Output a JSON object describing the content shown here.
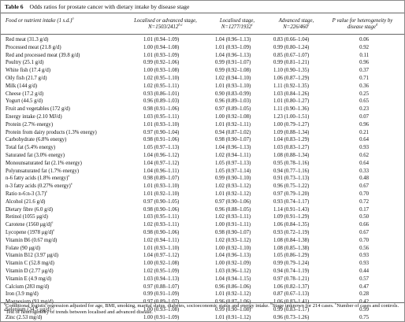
{
  "table": {
    "label": "Table 6",
    "title": "Odds ratios for prostate cancer with dietary intake by disease stage",
    "headers": {
      "food_line1": "Food or nutrient intake (1 s.d.)",
      "food_sup": "a",
      "la_line1": "Localised or advanced stage,",
      "la_line2": "N=1503/2412",
      "la_sup": "b,c",
      "lo_line1": "Localised stage,",
      "lo_line2": "N=1277/1932",
      "lo_sup": "c",
      "ad_line1": "Advanced stage,",
      "ad_line2": "N=226/460",
      "ad_sup": "c",
      "p_line1": "P value for heterogeneity by",
      "p_line2": "disease stage",
      "p_sup": "d"
    },
    "rows": [
      {
        "label": "Red meat (31.3 g/d)",
        "sup": "",
        "la": "1.01 (0.94–1.09)",
        "lo": "1.04 (0.96–1.13)",
        "ad": "0.83 (0.66–1.04)",
        "p": "0.06"
      },
      {
        "label": "Processed meat (21.8 g/d)",
        "sup": "",
        "la": "1.00 (0.94–1.08)",
        "lo": "1.01 (0.93–1.09)",
        "ad": "0.99 (0.80–1.24)",
        "p": "0.92"
      },
      {
        "label": "Red and processed meat (39.8 g/d)",
        "sup": "",
        "la": "1.01 (0.93–1.09)",
        "lo": "1.04 (0.96–1.13)",
        "ad": "0.85 (0.67–1.07)",
        "p": "0.11"
      },
      {
        "label": "Poultry (25.1 g/d)",
        "sup": "",
        "la": "0.99 (0.92–1.06)",
        "lo": "0.99 (0.91–1.07)",
        "ad": "0.99 (0.81–1.21)",
        "p": "0.96"
      },
      {
        "label": "White fish (17.4 g/d)",
        "sup": "",
        "la": "1.00 (0.93–1.08)",
        "lo": "0.99 (0.92–1.08)",
        "ad": "1.10 (0.90–1.35)",
        "p": "0.37"
      },
      {
        "label": "Oily fish (21.7 g/d)",
        "sup": "",
        "la": "1.02 (0.95–1.10)",
        "lo": "1.02 (0.94–1.10)",
        "ad": "1.06 (0.87–1.29)",
        "p": "0.71"
      },
      {
        "label": "Milk (144 g/d)",
        "sup": "",
        "la": "1.02 (0.95–1.11)",
        "lo": "1.01 (0.93–1.10)",
        "ad": "1.11 (0.92–1.35)",
        "p": "0.36"
      },
      {
        "label": "Cheese (17.2 g/d)",
        "sup": "",
        "la": "0.93 (0.86–1.01)",
        "lo": "0.90 (0.83–0.99)",
        "ad": "1.03 (0.84–1.26)",
        "p": "0.25"
      },
      {
        "label": "Yogurt (44.5 g/d)",
        "sup": "",
        "la": "0.96 (0.89–1.03)",
        "lo": "0.96 (0.89–1.03)",
        "ad": "1.01 (0.80–1.27)",
        "p": "0.65"
      },
      {
        "label": "Fruit and vegetables (172 g/d)",
        "sup": "",
        "la": "0.98 (0.91–1.06)",
        "lo": "0.97 (0.89–1.05)",
        "ad": "1.11 (0.90–1.36)",
        "p": "0.23"
      },
      {
        "label": "Energy intake (2.10 MJ/d)",
        "sup": "",
        "la": "1.03 (0.95–1.11)",
        "lo": "1.00 (0.92–1.08)",
        "ad": "1.23 (1.00–1.51)",
        "p": "0.07"
      },
      {
        "label": "Protein (2.7% energy)",
        "sup": "",
        "la": "1.01 (0.93–1.10)",
        "lo": "1.01 (0.92–1.11)",
        "ad": "1.00 (0.79–1.27)",
        "p": "0.96"
      },
      {
        "label": "Protein from dairy products (1.3% energy)",
        "sup": "",
        "la": "0.97 (0.90–1.04)",
        "lo": "0.94 (0.87–1.02)",
        "ad": "1.09 (0.88–1.34)",
        "p": "0.21"
      },
      {
        "label": "Carbohydrate (6.8% energy)",
        "sup": "",
        "la": "0.98 (0.91–1.06)",
        "lo": "0.98 (0.90–1.07)",
        "ad": "1.04 (0.83–1.29)",
        "p": "0.64"
      },
      {
        "label": "Total fat (5.4% energy)",
        "sup": "",
        "la": "1.05 (0.97–1.13)",
        "lo": "1.04 (0.96–1.13)",
        "ad": "1.03 (0.83–1.27)",
        "p": "0.93"
      },
      {
        "label": "Saturated fat (3.0% energy)",
        "sup": "",
        "la": "1.04 (0.96–1.12)",
        "lo": "1.02 (0.94–1.11)",
        "ad": "1.08 (0.88–1.34)",
        "p": "0.62"
      },
      {
        "label": "Monounsaturated fat (2.1% energy)",
        "sup": "",
        "la": "1.04 (0.97–1.12)",
        "lo": "1.05 (0.97–1.13)",
        "ad": "0.95 (0.78–1.16)",
        "p": "0.64"
      },
      {
        "label": "Polyunsaturated fat (1.7% energy)",
        "sup": "",
        "la": "1.04 (0.96–1.11)",
        "lo": "1.05 (0.97–1.14)",
        "ad": "0.94 (0.77–1.16)",
        "p": "0.33"
      },
      {
        "label": "n-6 fatty acids (1.8% energy)",
        "sup": "e",
        "la": "0.98 (0.89–1.07)",
        "lo": "0.99 (0.90–1.10)",
        "ad": "0.91 (0.73–1.13)",
        "p": "0.48"
      },
      {
        "label": "n-3 fatty acids (0.27% energy)",
        "sup": "e",
        "la": "1.01 (0.93–1.10)",
        "lo": "1.02 (0.93–1.12)",
        "ad": "0.96 (0.75–1.22)",
        "p": "0.67"
      },
      {
        "label": "Ratio n-6:n-3 (3.7)",
        "sup": "e",
        "la": "1.01 (0.92–1.10)",
        "lo": "1.01 (0.92–1.12)",
        "ad": "0.97 (0.79–1.20)",
        "p": "0.70"
      },
      {
        "label": "Alcohol (21.6 g/d)",
        "sup": "",
        "la": "0.97 (0.90–1.05)",
        "lo": "0.97 (0.90–1.06)",
        "ad": "0.93 (0.74–1.17)",
        "p": "0.72"
      },
      {
        "label": "Dietary fibre (6.0 g/d)",
        "sup": "",
        "la": "0.98 (0.90–1.06)",
        "lo": "0.96 (0.88–1.05)",
        "ad": "1.14 (0.91–1.43)",
        "p": "0.17"
      },
      {
        "label": "Retinol (1055 μg/d)",
        "sup": "",
        "la": "1.03 (0.95–1.11)",
        "lo": "1.02 (0.93–1.11)",
        "ad": "1.09 (0.91–1.29)",
        "p": "0.50"
      },
      {
        "label": "Carotene (1560 μg/d)",
        "sup": "e",
        "la": "1.02 (0.93–1.11)",
        "lo": "1.00 (0.91–1.11)",
        "ad": "1.06 (0.84–1.35)",
        "p": "0.66"
      },
      {
        "label": "Lycopene (1978 μg/d)",
        "sup": "e",
        "la": "0.98 (0.90–1.06)",
        "lo": "0.98 (0.90–1.07)",
        "ad": "0.93 (0.72–1.19)",
        "p": "0.67"
      },
      {
        "label": "Vitamin B6 (0.67 mg/d)",
        "sup": "",
        "la": "1.02 (0.94–1.11)",
        "lo": "1.02 (0.93–1.12)",
        "ad": "1.08 (0.84–1.38)",
        "p": "0.70"
      },
      {
        "label": "Folate (90 μg/d)",
        "sup": "",
        "la": "1.01 (0.93–1.10)",
        "lo": "1.00 (0.92–1.10)",
        "ad": "1.08 (0.85–1.38)",
        "p": "0.56"
      },
      {
        "label": "Vitamin B12 (3.97 μg/d)",
        "sup": "",
        "la": "1.04 (0.97–1.12)",
        "lo": "1.04 (0.96–1.13)",
        "ad": "1.05 (0.86–1.29)",
        "p": "0.93"
      },
      {
        "label": "Vitamin C (52.8 mg/d)",
        "sup": "",
        "la": "1.00 (0.92–1.08)",
        "lo": "1.00 (0.92–1.09)",
        "ad": "0.99 (0.79–1.24)",
        "p": "0.93"
      },
      {
        "label": "Vitamin D (2.77 μg/d)",
        "sup": "",
        "la": "1.02 (0.95–1.09)",
        "lo": "1.03 (0.96–1.12)",
        "ad": "0.94 (0.74–1.19)",
        "p": "0.44"
      },
      {
        "label": "Vitamin E (4.9 mg/d)",
        "sup": "",
        "la": "1.03 (0.94–1.13)",
        "lo": "1.04 (0.94–1.15)",
        "ad": "0.97 (0.78–1.21)",
        "p": "0.57"
      },
      {
        "label": "Calcium (283 mg/d)",
        "sup": "",
        "la": "0.97 (0.88–1.07)",
        "lo": "0.96 (0.86–1.06)",
        "ad": "1.06 (0.82–1.37)",
        "p": "0.47"
      },
      {
        "label": "Iron (3.9 mg/d)",
        "sup": "",
        "la": "0.99 (0.91–1.09)",
        "lo": "1.01 (0.92–1.12)",
        "ad": "0.87 (0.67–1.13)",
        "p": "0.28"
      },
      {
        "label": "Magnesium (91 mg/d)",
        "sup": "",
        "la": "0.97 (0.89–1.07)",
        "lo": "0.96 (0.87–1.06)",
        "ad": "1.06 (0.83–1.41)",
        "p": "0.42"
      },
      {
        "label": "Selenium (34.5 μg/d)",
        "sup": "",
        "la": "1.00 (0.93–1.08)",
        "lo": "0.99 (0.90–1.08)",
        "ad": "0.99 (0.83–1.17)",
        "p": "0.99"
      },
      {
        "label": "Zinc (2.53 mg/d)",
        "sup": "",
        "la": "1.00 (0.91–1.09)",
        "lo": "1.01 (0.91–1.12)",
        "ad": "0.96 (0.73–1.26)",
        "p": "0.75"
      }
    ],
    "footnote": {
      "a_mark": "a",
      "a_text": "Conditional logistic regression adjusted for age, BMI, smoking, marital status, diabetes, socioeconomic status and energy intake.",
      "b_mark": "b",
      "b_text": "Stage unknown for 214 cases.",
      "c_mark": "c",
      "c_text": "Number of cases and controls.",
      "d_mark": "d",
      "d_text": "Test of heterogeneity of trends between localised and advanced disease."
    }
  }
}
